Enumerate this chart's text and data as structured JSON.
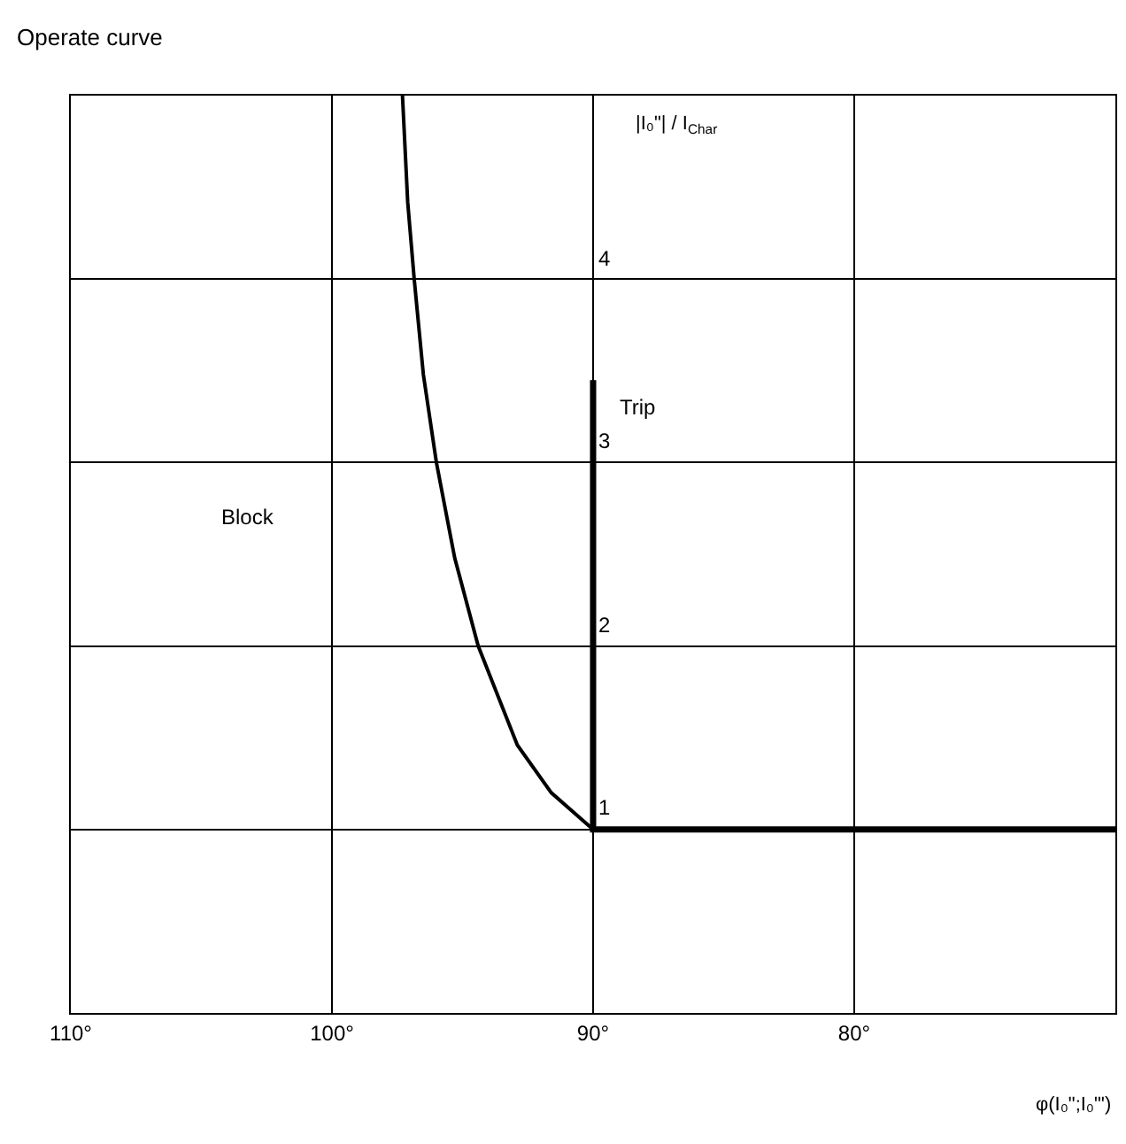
{
  "chart_data": {
    "type": "line",
    "title": "Operate curve",
    "xlabel": "φ(I₀\";I₀\"')",
    "ylabel": "|I₀\"| / I$_{Char}$",
    "xlim": [
      110,
      70
    ],
    "xticks": [
      {
        "value": 110,
        "label": "110°"
      },
      {
        "value": 100,
        "label": "100°"
      },
      {
        "value": 90,
        "label": "90°"
      },
      {
        "value": 80,
        "label": "80°"
      }
    ],
    "ylim": [
      0,
      5
    ],
    "yticks": [
      1,
      2,
      3,
      4
    ],
    "grid": true,
    "marker": "none",
    "line_style": "solid",
    "series": [
      {
        "color": "#000000",
        "x": [
          90,
          91.6,
          92.9,
          94.4,
          95.3,
          96.0,
          96.5,
          96.85,
          97.1,
          97.3
        ],
        "values": [
          1,
          1.2,
          1.46,
          2,
          2.48,
          3,
          3.48,
          4,
          4.42,
          5
        ]
      },
      {
        "color": "#000000",
        "x": [
          90,
          90,
          70
        ],
        "values": [
          3.45,
          1,
          1
        ]
      }
    ],
    "annotations": [
      {
        "text": "Block",
        "x": 103.2,
        "y": 2.7
      },
      {
        "text": "Trip",
        "x": 88.3,
        "y": 3.3
      }
    ]
  }
}
